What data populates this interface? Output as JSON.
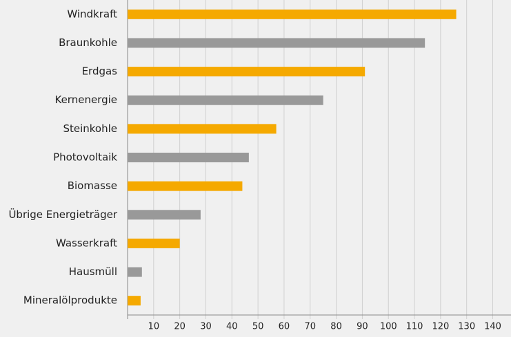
{
  "chart_data": {
    "type": "barh",
    "categories": [
      "Windkraft",
      "Braunkohle",
      "Erdgas",
      "Kernenergie",
      "Steinkohle",
      "Photovoltaik",
      "Biomasse",
      "Übrige Energieträger",
      "Wasserkraft",
      "Hausmüll",
      "Mineralölprodukte"
    ],
    "values": [
      126,
      114,
      91,
      75,
      57,
      46.5,
      44,
      28,
      20,
      5.5,
      5
    ],
    "colors": [
      "#f5a900",
      "#999999",
      "#f5a900",
      "#999999",
      "#f5a900",
      "#999999",
      "#f5a900",
      "#999999",
      "#f5a900",
      "#999999",
      "#f5a900"
    ],
    "xlim": [
      0,
      147
    ],
    "xticks": [
      10,
      20,
      30,
      40,
      50,
      60,
      70,
      80,
      90,
      100,
      110,
      120,
      130,
      140
    ],
    "grid": true
  }
}
